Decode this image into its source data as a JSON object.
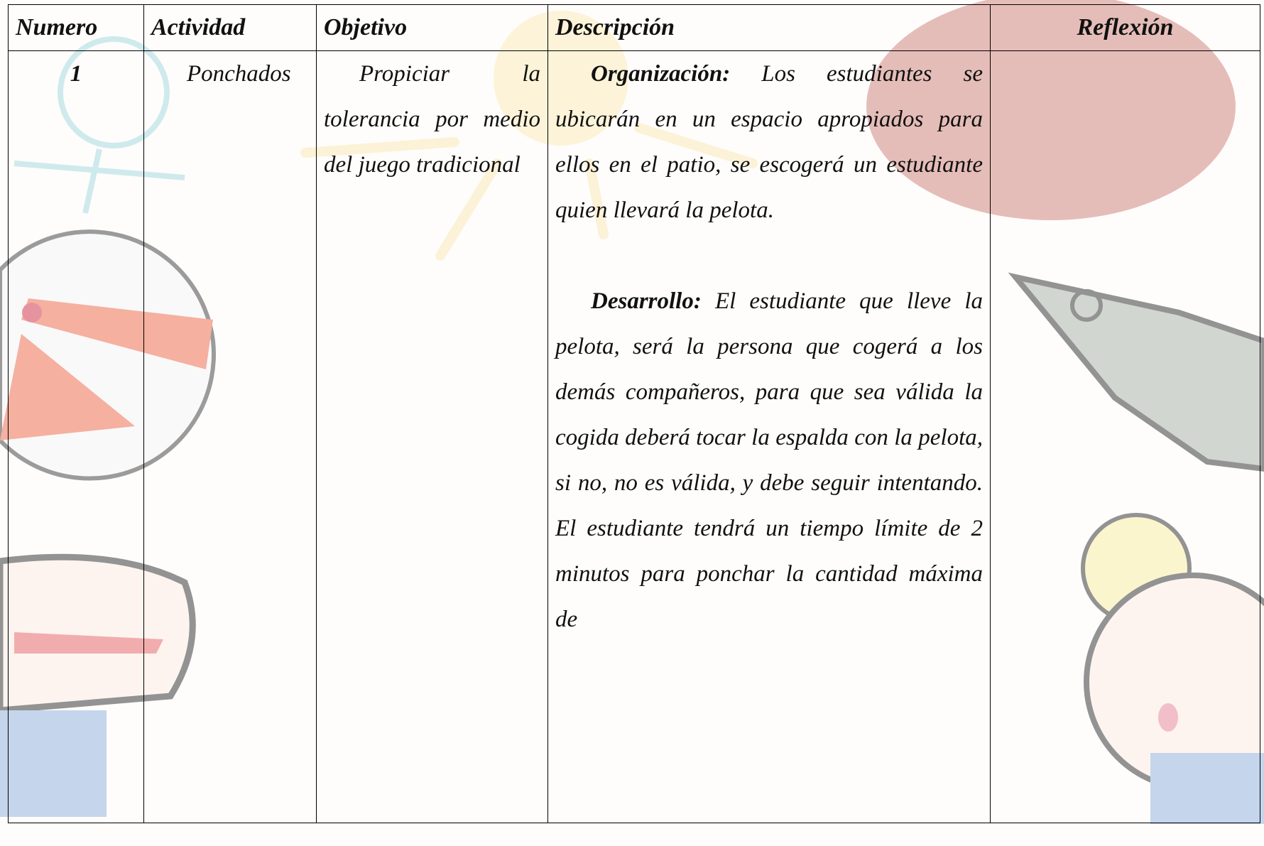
{
  "table": {
    "headers": [
      "Numero",
      "Actividad",
      "Objetivo",
      "Descripción",
      "Reflexión"
    ],
    "rows": [
      [
        "1",
        "Ponchados",
        "Propiciar la tolerancia por medio del juego tradicional",
        {
          "organization_label": "Organización:",
          "organization_text": "Los estudiantes se ubicarán en un espacio apropiados para ellos en el patio, se escogerá un estudiante quien llevará la pelota.",
          "development_label": "Desarrollo:",
          "development_text": "El estudiante que lleve la pelota, será la persona que cogerá a los demás compañeros, para que sea válida la cogida deberá tocar la espalda con la pelota, si no, no es válida, y debe seguir intentando. El estudiante tendrá un tiempo límite de 2 minutos para ponchar la cantidad máxima de"
        },
        ""
      ]
    ]
  }
}
